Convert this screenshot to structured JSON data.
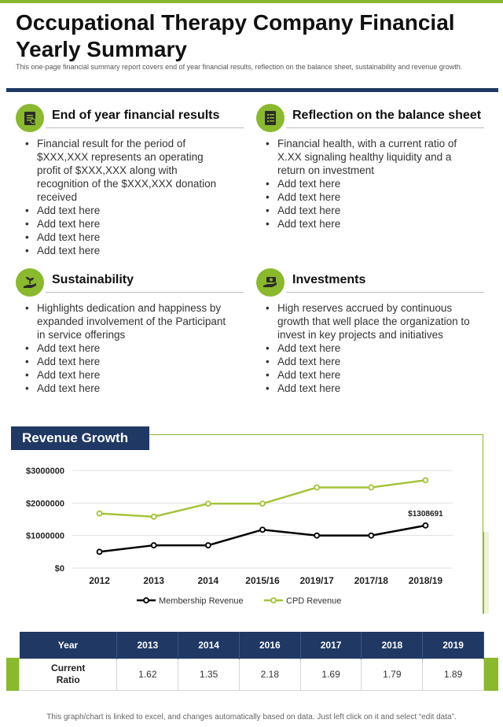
{
  "header": {
    "title_line1": "Occupational Therapy Company Financial",
    "title_line2": "Yearly Summary",
    "subtitle": "This one-page financial summary report covers end of year financial results, reflection on the balance sheet, sustainability and revenue growth."
  },
  "sections": [
    {
      "title": "End of year financial results",
      "icon": "report-icon",
      "items": [
        "Financial result for the period of $XXX,XXX represents an operating profit of $XXX,XXX along with recognition of the $XXX,XXX donation received",
        "Add text here",
        "Add text here",
        "Add text here",
        "Add text here"
      ]
    },
    {
      "title": "Reflection on the balance sheet",
      "icon": "checklist-icon",
      "items": [
        "Financial health, with a current ratio of X.XX signaling healthy liquidity and a return on investment",
        "Add text here",
        "Add text here",
        "Add text here",
        "Add text here"
      ]
    },
    {
      "title": "Sustainability",
      "icon": "plant-hand-icon",
      "items": [
        "Highlights dedication and happiness by expanded involvement of the Participant in service offerings",
        "Add text here",
        "Add text here",
        "Add text here",
        "Add text here"
      ]
    },
    {
      "title": "Investments",
      "icon": "money-hand-icon",
      "items": [
        "High reserves accrued by continuous growth that well place the organization to invest in key projects and initiatives",
        "Add text here",
        "Add text here",
        "Add text here",
        "Add text here"
      ]
    }
  ],
  "revenue": {
    "label": "Revenue Growth"
  },
  "chart_data": {
    "type": "line",
    "categories": [
      "2012",
      "2013",
      "2014",
      "2015/16",
      "2019/17",
      "2017/18",
      "2018/19"
    ],
    "series": [
      {
        "name": "Membership Revenue",
        "color": "#000000",
        "values": [
          500000,
          700000,
          700000,
          1180000,
          1000000,
          1000000,
          1308691
        ]
      },
      {
        "name": "CPD Revenue",
        "color": "#a3c43a",
        "values": [
          1680000,
          1580000,
          1980000,
          1980000,
          2480000,
          2480000,
          2700000
        ]
      }
    ],
    "y_ticks": [
      0,
      1000000,
      2000000,
      3000000
    ],
    "y_tick_labels": [
      "$0",
      "$1000000",
      "$2000000",
      "$3000000"
    ],
    "ylim": [
      0,
      3000000
    ],
    "annotation": "$1308691",
    "legend_position": "bottom",
    "grid": true
  },
  "table": {
    "headers": [
      "Year",
      "2013",
      "2014",
      "2016",
      "2017",
      "2018",
      "2019"
    ],
    "row_label_line1": "Current",
    "row_label_line2": "Ratio",
    "values": [
      "1.62",
      "1.35",
      "2.18",
      "1.69",
      "1.79",
      "1.89"
    ]
  },
  "footer": "This graph/chart is linked to excel, and changes automatically based on data. Just left click on it and select “edit data”."
}
